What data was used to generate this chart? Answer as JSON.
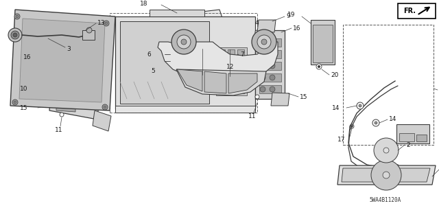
{
  "bg": "#f5f5f5",
  "lc": "#3a3a3a",
  "lw": 0.7,
  "fs": 6.5,
  "title_text": "5WA4B1120A"
}
